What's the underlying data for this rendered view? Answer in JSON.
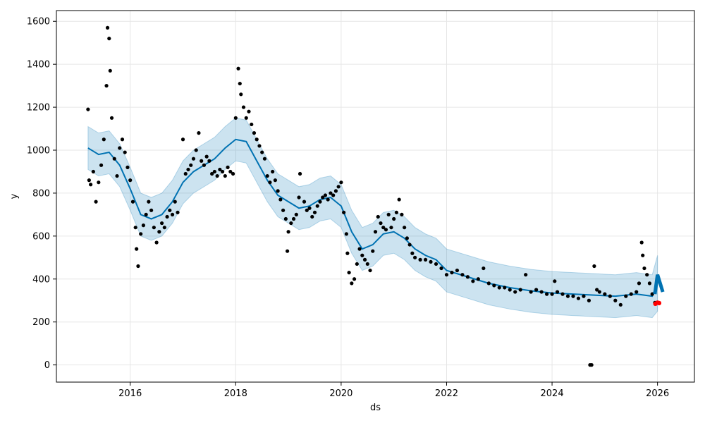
{
  "chart_data": {
    "type": "line",
    "title": "",
    "xlabel": "ds",
    "ylabel": "y",
    "xlim": [
      2014.6,
      2026.7
    ],
    "ylim": [
      -80,
      1650
    ],
    "xticks": [
      2016,
      2018,
      2020,
      2022,
      2024,
      2026
    ],
    "xtick_labels": [
      "2016",
      "2018",
      "2020",
      "2022",
      "2024",
      "2026"
    ],
    "yticks": [
      0,
      200,
      400,
      600,
      800,
      1000,
      1200,
      1400,
      1600
    ],
    "ytick_labels": [
      "0",
      "200",
      "400",
      "600",
      "800",
      "1000",
      "1200",
      "1400",
      "1600"
    ],
    "grid": true,
    "colors": {
      "observed": "#000000",
      "forecast": "#0072B2",
      "interval": "#0072B2",
      "recent": "#ff0000"
    },
    "series": [
      {
        "kind": "forecast_line",
        "x": [
          2015.2,
          2015.4,
          2015.6,
          2015.8,
          2016.0,
          2016.2,
          2016.4,
          2016.6,
          2016.8,
          2017.0,
          2017.2,
          2017.4,
          2017.6,
          2017.8,
          2018.0,
          2018.2,
          2018.4,
          2018.6,
          2018.8,
          2019.0,
          2019.2,
          2019.4,
          2019.6,
          2019.8,
          2020.0,
          2020.2,
          2020.4,
          2020.6,
          2020.8,
          2021.0,
          2021.2,
          2021.4,
          2021.6,
          2021.8,
          2022.0,
          2022.4,
          2022.8,
          2023.2,
          2023.6,
          2024.0,
          2024.4,
          2024.8,
          2025.2,
          2025.6,
          2025.9,
          2026.0
        ],
        "y": [
          1010,
          980,
          990,
          930,
          820,
          700,
          680,
          700,
          760,
          850,
          900,
          930,
          960,
          1010,
          1050,
          1040,
          950,
          860,
          790,
          760,
          730,
          740,
          770,
          780,
          740,
          620,
          540,
          560,
          610,
          620,
          590,
          540,
          510,
          490,
          440,
          410,
          380,
          360,
          345,
          335,
          330,
          325,
          320,
          330,
          320,
          380
        ]
      },
      {
        "kind": "uncertainty_band",
        "x": [
          2015.2,
          2015.4,
          2015.6,
          2015.8,
          2016.0,
          2016.2,
          2016.4,
          2016.6,
          2016.8,
          2017.0,
          2017.2,
          2017.4,
          2017.6,
          2017.8,
          2018.0,
          2018.2,
          2018.4,
          2018.6,
          2018.8,
          2019.0,
          2019.2,
          2019.4,
          2019.6,
          2019.8,
          2020.0,
          2020.2,
          2020.4,
          2020.6,
          2020.8,
          2021.0,
          2021.2,
          2021.4,
          2021.6,
          2021.8,
          2022.0,
          2022.4,
          2022.8,
          2023.2,
          2023.6,
          2024.0,
          2024.4,
          2024.8,
          2025.2,
          2025.6,
          2025.9,
          2026.0
        ],
        "upper": [
          1110,
          1080,
          1090,
          1030,
          920,
          800,
          780,
          800,
          860,
          950,
          1000,
          1030,
          1060,
          1110,
          1150,
          1140,
          1050,
          960,
          890,
          860,
          830,
          840,
          870,
          880,
          840,
          720,
          640,
          660,
          710,
          720,
          690,
          640,
          610,
          590,
          540,
          510,
          480,
          460,
          445,
          435,
          430,
          425,
          420,
          430,
          420,
          510
        ],
        "lower": [
          910,
          880,
          890,
          830,
          720,
          600,
          580,
          600,
          660,
          750,
          800,
          830,
          860,
          910,
          950,
          940,
          850,
          760,
          690,
          660,
          630,
          640,
          670,
          680,
          640,
          520,
          440,
          460,
          510,
          520,
          490,
          440,
          410,
          390,
          340,
          310,
          280,
          260,
          245,
          235,
          230,
          225,
          220,
          230,
          220,
          250
        ]
      },
      {
        "kind": "observed_points",
        "name": "",
        "points": [
          [
            2015.2,
            1190
          ],
          [
            2015.22,
            860
          ],
          [
            2015.25,
            840
          ],
          [
            2015.3,
            900
          ],
          [
            2015.35,
            760
          ],
          [
            2015.4,
            850
          ],
          [
            2015.45,
            930
          ],
          [
            2015.5,
            1050
          ],
          [
            2015.55,
            1300
          ],
          [
            2015.57,
            1570
          ],
          [
            2015.6,
            1520
          ],
          [
            2015.62,
            1370
          ],
          [
            2015.65,
            1150
          ],
          [
            2015.7,
            960
          ],
          [
            2015.75,
            880
          ],
          [
            2015.8,
            1010
          ],
          [
            2015.85,
            1050
          ],
          [
            2015.9,
            990
          ],
          [
            2015.95,
            920
          ],
          [
            2016.0,
            860
          ],
          [
            2016.05,
            760
          ],
          [
            2016.1,
            640
          ],
          [
            2016.12,
            540
          ],
          [
            2016.15,
            460
          ],
          [
            2016.2,
            610
          ],
          [
            2016.25,
            650
          ],
          [
            2016.3,
            700
          ],
          [
            2016.35,
            760
          ],
          [
            2016.4,
            720
          ],
          [
            2016.45,
            640
          ],
          [
            2016.5,
            570
          ],
          [
            2016.55,
            620
          ],
          [
            2016.6,
            660
          ],
          [
            2016.65,
            640
          ],
          [
            2016.7,
            690
          ],
          [
            2016.75,
            720
          ],
          [
            2016.8,
            700
          ],
          [
            2016.85,
            760
          ],
          [
            2016.9,
            710
          ],
          [
            2017.0,
            1050
          ],
          [
            2017.05,
            890
          ],
          [
            2017.1,
            910
          ],
          [
            2017.15,
            930
          ],
          [
            2017.2,
            960
          ],
          [
            2017.25,
            1000
          ],
          [
            2017.3,
            1080
          ],
          [
            2017.35,
            950
          ],
          [
            2017.4,
            930
          ],
          [
            2017.45,
            970
          ],
          [
            2017.5,
            950
          ],
          [
            2017.55,
            890
          ],
          [
            2017.6,
            900
          ],
          [
            2017.65,
            880
          ],
          [
            2017.7,
            910
          ],
          [
            2017.75,
            900
          ],
          [
            2017.8,
            880
          ],
          [
            2017.85,
            920
          ],
          [
            2017.9,
            900
          ],
          [
            2017.95,
            890
          ],
          [
            2018.0,
            1150
          ],
          [
            2018.05,
            1380
          ],
          [
            2018.08,
            1310
          ],
          [
            2018.1,
            1260
          ],
          [
            2018.15,
            1200
          ],
          [
            2018.2,
            1150
          ],
          [
            2018.25,
            1180
          ],
          [
            2018.3,
            1120
          ],
          [
            2018.35,
            1080
          ],
          [
            2018.4,
            1050
          ],
          [
            2018.45,
            1020
          ],
          [
            2018.5,
            990
          ],
          [
            2018.55,
            960
          ],
          [
            2018.6,
            880
          ],
          [
            2018.65,
            850
          ],
          [
            2018.7,
            900
          ],
          [
            2018.75,
            860
          ],
          [
            2018.8,
            810
          ],
          [
            2018.85,
            770
          ],
          [
            2018.9,
            720
          ],
          [
            2018.95,
            680
          ],
          [
            2018.98,
            530
          ],
          [
            2019.0,
            620
          ],
          [
            2019.05,
            660
          ],
          [
            2019.1,
            680
          ],
          [
            2019.15,
            700
          ],
          [
            2019.2,
            780
          ],
          [
            2019.22,
            890
          ],
          [
            2019.3,
            760
          ],
          [
            2019.35,
            720
          ],
          [
            2019.4,
            730
          ],
          [
            2019.45,
            690
          ],
          [
            2019.5,
            710
          ],
          [
            2019.55,
            740
          ],
          [
            2019.6,
            760
          ],
          [
            2019.65,
            780
          ],
          [
            2019.7,
            790
          ],
          [
            2019.75,
            770
          ],
          [
            2019.8,
            800
          ],
          [
            2019.85,
            790
          ],
          [
            2019.9,
            810
          ],
          [
            2019.95,
            830
          ],
          [
            2020.0,
            850
          ],
          [
            2020.05,
            710
          ],
          [
            2020.1,
            610
          ],
          [
            2020.12,
            520
          ],
          [
            2020.15,
            430
          ],
          [
            2020.2,
            380
          ],
          [
            2020.25,
            400
          ],
          [
            2020.3,
            470
          ],
          [
            2020.35,
            540
          ],
          [
            2020.4,
            510
          ],
          [
            2020.45,
            490
          ],
          [
            2020.5,
            470
          ],
          [
            2020.55,
            440
          ],
          [
            2020.6,
            530
          ],
          [
            2020.65,
            620
          ],
          [
            2020.7,
            690
          ],
          [
            2020.75,
            660
          ],
          [
            2020.8,
            640
          ],
          [
            2020.85,
            630
          ],
          [
            2020.9,
            700
          ],
          [
            2020.95,
            640
          ],
          [
            2021.0,
            680
          ],
          [
            2021.05,
            710
          ],
          [
            2021.1,
            770
          ],
          [
            2021.15,
            700
          ],
          [
            2021.2,
            640
          ],
          [
            2021.25,
            590
          ],
          [
            2021.3,
            560
          ],
          [
            2021.35,
            520
          ],
          [
            2021.4,
            500
          ],
          [
            2021.5,
            490
          ],
          [
            2021.6,
            490
          ],
          [
            2021.7,
            480
          ],
          [
            2021.8,
            470
          ],
          [
            2021.9,
            450
          ],
          [
            2022.0,
            420
          ],
          [
            2022.1,
            430
          ],
          [
            2022.2,
            440
          ],
          [
            2022.3,
            420
          ],
          [
            2022.4,
            410
          ],
          [
            2022.5,
            390
          ],
          [
            2022.6,
            400
          ],
          [
            2022.7,
            450
          ],
          [
            2022.8,
            380
          ],
          [
            2022.9,
            370
          ],
          [
            2023.0,
            360
          ],
          [
            2023.1,
            360
          ],
          [
            2023.2,
            350
          ],
          [
            2023.3,
            340
          ],
          [
            2023.4,
            350
          ],
          [
            2023.5,
            420
          ],
          [
            2023.6,
            340
          ],
          [
            2023.7,
            350
          ],
          [
            2023.8,
            340
          ],
          [
            2023.9,
            330
          ],
          [
            2024.0,
            330
          ],
          [
            2024.05,
            390
          ],
          [
            2024.1,
            340
          ],
          [
            2024.2,
            330
          ],
          [
            2024.3,
            320
          ],
          [
            2024.4,
            320
          ],
          [
            2024.5,
            310
          ],
          [
            2024.6,
            320
          ],
          [
            2024.7,
            300
          ],
          [
            2024.72,
            0
          ],
          [
            2024.75,
            0
          ],
          [
            2024.8,
            460
          ],
          [
            2024.85,
            350
          ],
          [
            2024.9,
            340
          ],
          [
            2025.0,
            330
          ],
          [
            2025.1,
            320
          ],
          [
            2025.2,
            300
          ],
          [
            2025.3,
            280
          ],
          [
            2025.4,
            320
          ],
          [
            2025.5,
            330
          ],
          [
            2025.6,
            340
          ],
          [
            2025.65,
            380
          ],
          [
            2025.7,
            570
          ],
          [
            2025.72,
            510
          ],
          [
            2025.75,
            450
          ],
          [
            2025.8,
            420
          ],
          [
            2025.85,
            380
          ],
          [
            2025.9,
            330
          ],
          [
            2025.95,
            290
          ]
        ]
      },
      {
        "kind": "recent_points",
        "name": "",
        "points": [
          [
            2025.96,
            285
          ],
          [
            2026.0,
            290
          ],
          [
            2026.03,
            288
          ]
        ]
      },
      {
        "kind": "future_forecast",
        "x": [
          2025.95,
          2026.0,
          2026.05,
          2026.1
        ],
        "y": [
          330,
          420,
          380,
          340
        ]
      }
    ]
  }
}
